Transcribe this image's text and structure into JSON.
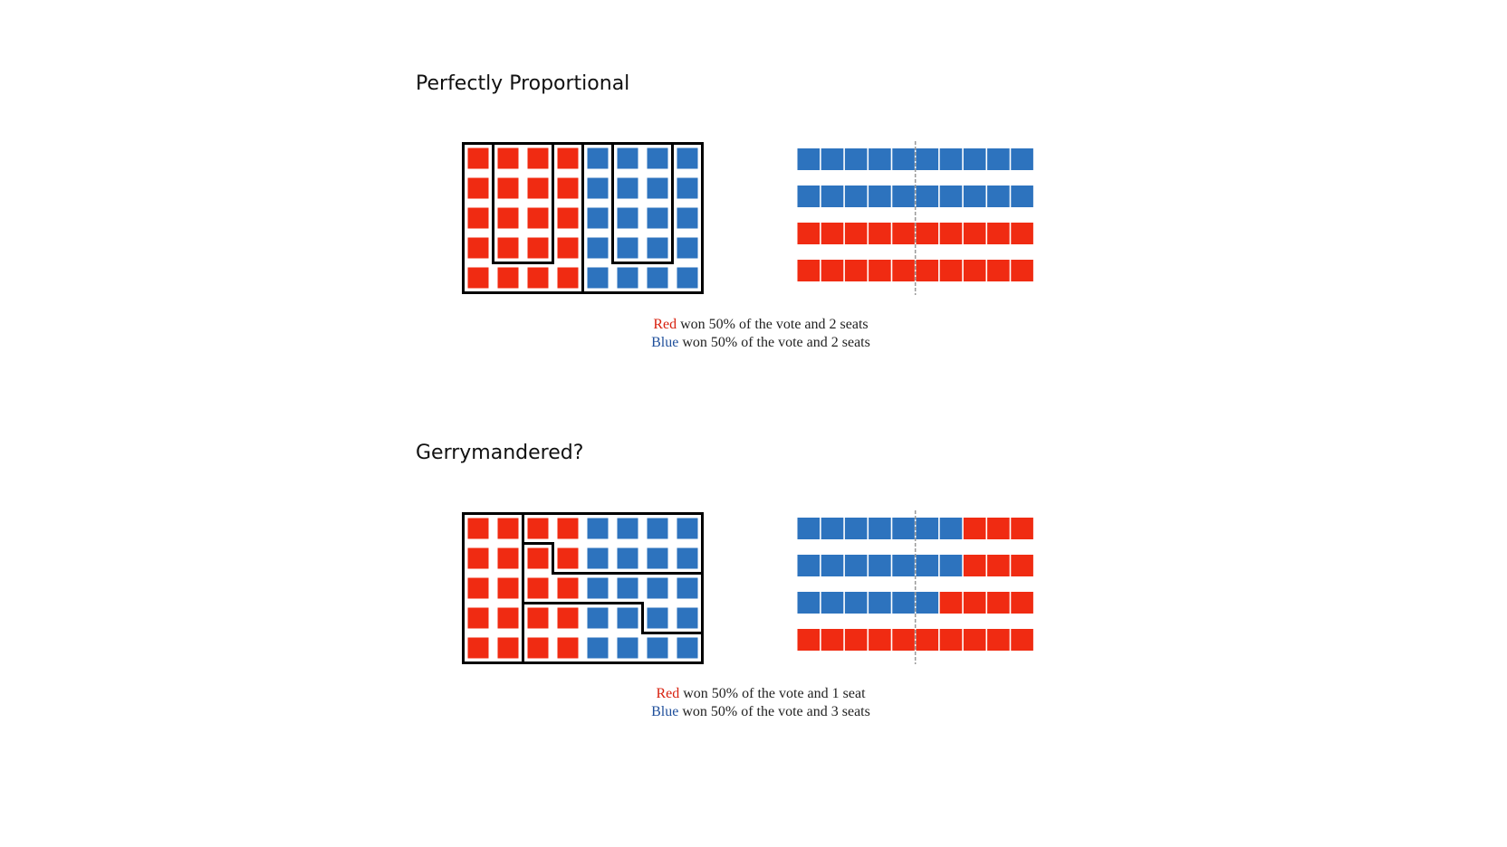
{
  "colors": {
    "red": "#f02b12",
    "blue": "#2d73be",
    "outline": "#000000",
    "divider": "#999999"
  },
  "diagrams": [
    {
      "title": "Perfectly Proportional",
      "grid": [
        [
          "R",
          "R",
          "R",
          "R",
          "B",
          "B",
          "B",
          "B"
        ],
        [
          "R",
          "R",
          "R",
          "R",
          "B",
          "B",
          "B",
          "B"
        ],
        [
          "R",
          "R",
          "R",
          "R",
          "B",
          "B",
          "B",
          "B"
        ],
        [
          "R",
          "R",
          "R",
          "R",
          "B",
          "B",
          "B",
          "B"
        ],
        [
          "R",
          "R",
          "R",
          "R",
          "B",
          "B",
          "B",
          "B"
        ]
      ],
      "districts": [
        [
          0,
          1,
          1,
          0,
          3,
          2,
          2,
          3
        ],
        [
          0,
          1,
          1,
          0,
          3,
          2,
          2,
          3
        ],
        [
          0,
          1,
          1,
          0,
          3,
          2,
          2,
          3
        ],
        [
          0,
          1,
          1,
          0,
          3,
          2,
          2,
          3
        ],
        [
          0,
          0,
          0,
          0,
          3,
          3,
          3,
          3
        ]
      ],
      "bars": [
        [
          "B",
          "B",
          "B",
          "B",
          "B",
          "B",
          "B",
          "B",
          "B",
          "B"
        ],
        [
          "B",
          "B",
          "B",
          "B",
          "B",
          "B",
          "B",
          "B",
          "B",
          "B"
        ],
        [
          "R",
          "R",
          "R",
          "R",
          "R",
          "R",
          "R",
          "R",
          "R",
          "R"
        ],
        [
          "R",
          "R",
          "R",
          "R",
          "R",
          "R",
          "R",
          "R",
          "R",
          "R"
        ]
      ],
      "captions": [
        {
          "party": "Red",
          "color": "red",
          "text": "won 50% of the vote and 2 seats"
        },
        {
          "party": "Blue",
          "color": "blue",
          "text": "won 50% of the vote and 2 seats"
        }
      ]
    },
    {
      "title": "Gerrymandered?",
      "grid": [
        [
          "R",
          "R",
          "R",
          "R",
          "B",
          "B",
          "B",
          "B"
        ],
        [
          "R",
          "R",
          "R",
          "R",
          "B",
          "B",
          "B",
          "B"
        ],
        [
          "R",
          "R",
          "R",
          "R",
          "B",
          "B",
          "B",
          "B"
        ],
        [
          "R",
          "R",
          "R",
          "R",
          "B",
          "B",
          "B",
          "B"
        ],
        [
          "R",
          "R",
          "R",
          "R",
          "B",
          "B",
          "B",
          "B"
        ]
      ],
      "districts": [
        [
          0,
          0,
          1,
          1,
          1,
          1,
          1,
          1
        ],
        [
          0,
          0,
          2,
          1,
          1,
          1,
          1,
          1
        ],
        [
          0,
          0,
          2,
          2,
          2,
          2,
          2,
          2
        ],
        [
          0,
          0,
          3,
          3,
          3,
          3,
          2,
          2
        ],
        [
          0,
          0,
          3,
          3,
          3,
          3,
          3,
          3
        ]
      ],
      "bars": [
        [
          "B",
          "B",
          "B",
          "B",
          "B",
          "B",
          "B",
          "R",
          "R",
          "R"
        ],
        [
          "B",
          "B",
          "B",
          "B",
          "B",
          "B",
          "B",
          "R",
          "R",
          "R"
        ],
        [
          "B",
          "B",
          "B",
          "B",
          "B",
          "B",
          "R",
          "R",
          "R",
          "R"
        ],
        [
          "R",
          "R",
          "R",
          "R",
          "R",
          "R",
          "R",
          "R",
          "R",
          "R"
        ]
      ],
      "captions": [
        {
          "party": "Red",
          "color": "red",
          "text": "won 50% of the vote and 1 seat"
        },
        {
          "party": "Blue",
          "color": "blue",
          "text": "won 50% of the vote and 3 seats"
        }
      ]
    }
  ]
}
